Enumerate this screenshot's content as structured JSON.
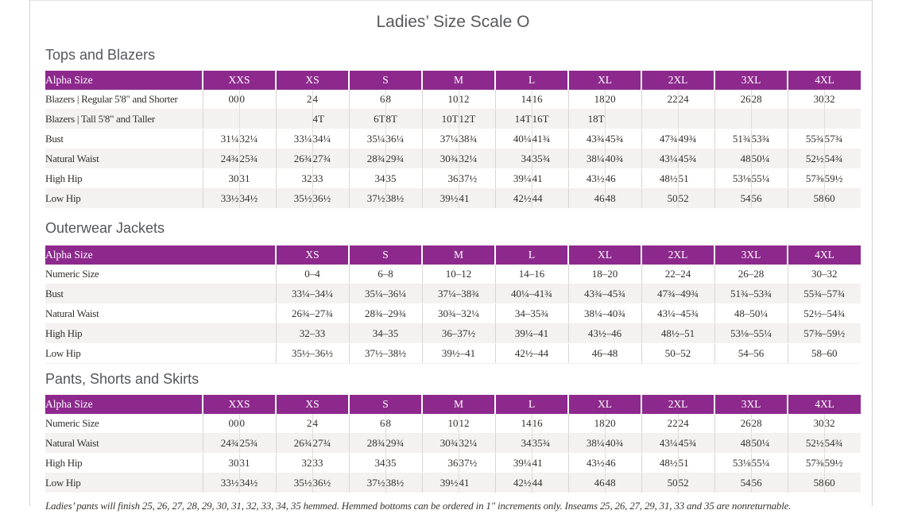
{
  "page": {
    "title": "Ladies’ Size Scale O"
  },
  "colors": {
    "header_purple": "#8d298d",
    "row_stripe": "#f4f2f0"
  },
  "tables": [
    {
      "id": "tops-and-blazers",
      "section_title": "Tops and Blazers",
      "label_header": "Alpha Size",
      "paired": true,
      "size_headers": [
        "XXS",
        "XS",
        "S",
        "M",
        "L",
        "XL",
        "2XL",
        "3XL",
        "4XL"
      ],
      "rows": [
        {
          "label": "Blazers | Regular 5'8\" and Shorter",
          "cells": [
            [
              "00",
              "0"
            ],
            [
              "2",
              "4"
            ],
            [
              "6",
              "8"
            ],
            [
              "10",
              "12"
            ],
            [
              "14",
              "16"
            ],
            [
              "18",
              "20"
            ],
            [
              "22",
              "24"
            ],
            [
              "26",
              "28"
            ],
            [
              "30",
              "32"
            ]
          ]
        },
        {
          "label": "Blazers | Tall 5'8\" and Taller",
          "cells": [
            [
              "",
              ""
            ],
            [
              "",
              "4T"
            ],
            [
              "6T",
              "8T"
            ],
            [
              "10T",
              "12T"
            ],
            [
              "14T",
              "16T"
            ],
            [
              "18T",
              ""
            ],
            [
              "",
              ""
            ],
            [
              "",
              ""
            ],
            [
              "",
              ""
            ]
          ]
        },
        {
          "label": "Bust",
          "cells": [
            [
              "31¼",
              "32¼"
            ],
            [
              "33¼",
              "34¼"
            ],
            [
              "35¼",
              "36¼"
            ],
            [
              "37¼",
              "38¾"
            ],
            [
              "40¼",
              "41¾"
            ],
            [
              "43¾",
              "45¾"
            ],
            [
              "47¾",
              "49¾"
            ],
            [
              "51¾",
              "53¾"
            ],
            [
              "55¾",
              "57¾"
            ]
          ]
        },
        {
          "label": "Natural Waist",
          "cells": [
            [
              "24¾",
              "25¾"
            ],
            [
              "26¾",
              "27¾"
            ],
            [
              "28¾",
              "29¾"
            ],
            [
              "30¾",
              "32¼"
            ],
            [
              "34",
              "35¾"
            ],
            [
              "38¼",
              "40¾"
            ],
            [
              "43¼",
              "45¾"
            ],
            [
              "48",
              "50¼"
            ],
            [
              "52½",
              "54¾"
            ]
          ]
        },
        {
          "label": "High Hip",
          "cells": [
            [
              "30",
              "31"
            ],
            [
              "32",
              "33"
            ],
            [
              "34",
              "35"
            ],
            [
              "36",
              "37½"
            ],
            [
              "39¼",
              "41"
            ],
            [
              "43½",
              "46"
            ],
            [
              "48½",
              "51"
            ],
            [
              "53⅛",
              "55¼"
            ],
            [
              "57⅜",
              "59½"
            ]
          ]
        },
        {
          "label": "Low Hip",
          "cells": [
            [
              "33½",
              "34½"
            ],
            [
              "35½",
              "36½"
            ],
            [
              "37½",
              "38½"
            ],
            [
              "39½",
              "41"
            ],
            [
              "42½",
              "44"
            ],
            [
              "46",
              "48"
            ],
            [
              "50",
              "52"
            ],
            [
              "54",
              "56"
            ],
            [
              "58",
              "60"
            ]
          ]
        }
      ]
    },
    {
      "id": "outerwear-jackets",
      "section_title": "Outerwear Jackets",
      "label_header": "Alpha Size",
      "paired": false,
      "size_headers": [
        "XS",
        "S",
        "M",
        "L",
        "XL",
        "2XL",
        "3XL",
        "4XL"
      ],
      "rows": [
        {
          "label": "Numeric Size",
          "cells": [
            "0–4",
            "6–8",
            "10–12",
            "14–16",
            "18–20",
            "22–24",
            "26–28",
            "30–32"
          ]
        },
        {
          "label": "Bust",
          "cells": [
            "33¼–34¼",
            "35¼–36¼",
            "37¼–38¾",
            "40¼–41¾",
            "43¾–45¾",
            "47¾–49¾",
            "51¾–53¾",
            "55¾–57¾"
          ]
        },
        {
          "label": "Natural Waist",
          "cells": [
            "26¾–27¾",
            "28¾–29¾",
            "30¾–32¼",
            "34–35¾",
            "38¼–40¾",
            "43¼–45¾",
            "48–50¼",
            "52½–54¾"
          ]
        },
        {
          "label": "High Hip",
          "cells": [
            "32–33",
            "34–35",
            "36–37½",
            "39¼–41",
            "43½–46",
            "48½–51",
            "53⅛–55¼",
            "57⅜–59½"
          ]
        },
        {
          "label": "Low Hip",
          "cells": [
            "35½–36½",
            "37½–38½",
            "39½–41",
            "42½–44",
            "46–48",
            "50–52",
            "54–56",
            "58–60"
          ]
        }
      ]
    },
    {
      "id": "pants-shorts-skirts",
      "section_title": "Pants, Shorts and Skirts",
      "label_header": "Alpha Size",
      "paired": true,
      "size_headers": [
        "XXS",
        "XS",
        "S",
        "M",
        "L",
        "XL",
        "2XL",
        "3XL",
        "4XL"
      ],
      "rows": [
        {
          "label": "Numeric Size",
          "cells": [
            [
              "00",
              "0"
            ],
            [
              "2",
              "4"
            ],
            [
              "6",
              "8"
            ],
            [
              "10",
              "12"
            ],
            [
              "14",
              "16"
            ],
            [
              "18",
              "20"
            ],
            [
              "22",
              "24"
            ],
            [
              "26",
              "28"
            ],
            [
              "30",
              "32"
            ]
          ]
        },
        {
          "label": "Natural Waist",
          "cells": [
            [
              "24¾",
              "25¾"
            ],
            [
              "26¾",
              "27¾"
            ],
            [
              "28¾",
              "29¾"
            ],
            [
              "30¾",
              "32¼"
            ],
            [
              "34",
              "35¾"
            ],
            [
              "38¼",
              "40¾"
            ],
            [
              "43¼",
              "45¾"
            ],
            [
              "48",
              "50¼"
            ],
            [
              "52½",
              "54¾"
            ]
          ]
        },
        {
          "label": "High Hip",
          "cells": [
            [
              "30",
              "31"
            ],
            [
              "32",
              "33"
            ],
            [
              "34",
              "35"
            ],
            [
              "36",
              "37½"
            ],
            [
              "39¼",
              "41"
            ],
            [
              "43½",
              "46"
            ],
            [
              "48½",
              "51"
            ],
            [
              "53⅛",
              "55¼"
            ],
            [
              "57⅜",
              "59½"
            ]
          ]
        },
        {
          "label": "Low Hip",
          "cells": [
            [
              "33½",
              "34½"
            ],
            [
              "35½",
              "36½"
            ],
            [
              "37½",
              "38½"
            ],
            [
              "39½",
              "41"
            ],
            [
              "42½",
              "44"
            ],
            [
              "46",
              "48"
            ],
            [
              "50",
              "52"
            ],
            [
              "54",
              "56"
            ],
            [
              "58",
              "60"
            ]
          ]
        }
      ]
    }
  ],
  "footnote": "Ladies’ pants will finish 25, 26, 27, 28, 29, 30, 31, 32, 33, 34, 35 hemmed. Hemmed bottoms can be ordered in 1\" increments only. Inseams 25, 26, 27, 29, 31, 33 and 35 are nonreturnable."
}
